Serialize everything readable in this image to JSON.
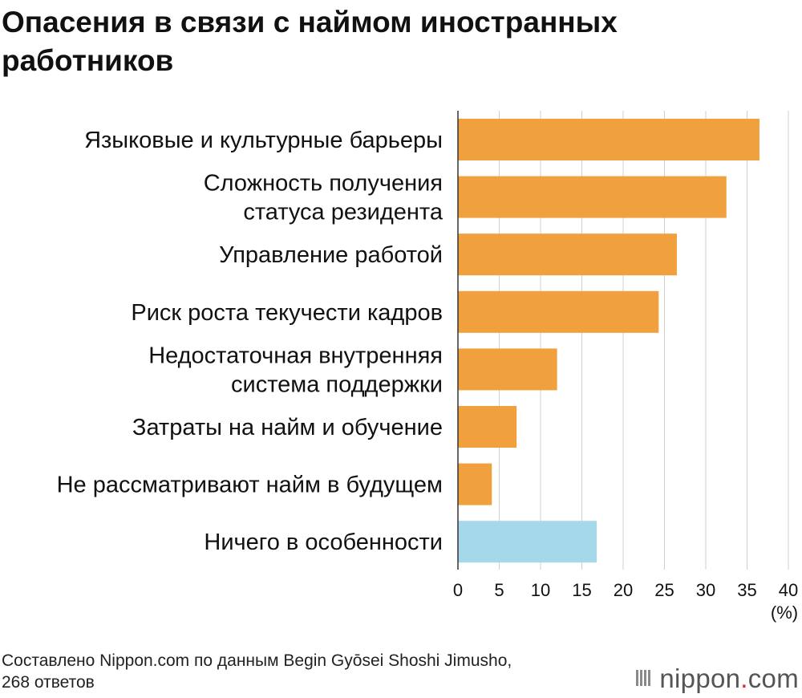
{
  "chart_data": {
    "type": "bar",
    "orientation": "horizontal",
    "title": "Опасения в связи с наймом иностранных работников",
    "categories": [
      [
        "Языковые и культурные барьеры"
      ],
      [
        "Сложность получения",
        "статуса резидента"
      ],
      [
        "Управление работой"
      ],
      [
        "Риск роста текучести кадров"
      ],
      [
        "Недостаточная внутренняя",
        "система поддержки"
      ],
      [
        "Затраты на найм и обучение"
      ],
      [
        "Не рассматривают найм в будущем"
      ],
      [
        "Ничего в особенности"
      ]
    ],
    "values": [
      36.5,
      32.5,
      26.5,
      24.3,
      12.0,
      7.1,
      4.1,
      16.8
    ],
    "bar_colors": [
      "#f0a03c",
      "#f0a03c",
      "#f0a03c",
      "#f0a03c",
      "#f0a03c",
      "#f0a03c",
      "#f0a03c",
      "#a5d8e8"
    ],
    "xlim": [
      0,
      40
    ],
    "xticks": [
      0,
      5,
      10,
      15,
      20,
      25,
      30,
      35,
      40
    ],
    "xlabel": "(%)",
    "grid": true
  },
  "source": {
    "line1": "Составлено Nippon.com по данным Begin Gyōsei Shoshi Jimusho,",
    "line2": "268 ответов"
  },
  "logo": {
    "name": "nippon",
    "dot": ".",
    "suffix": "com"
  }
}
